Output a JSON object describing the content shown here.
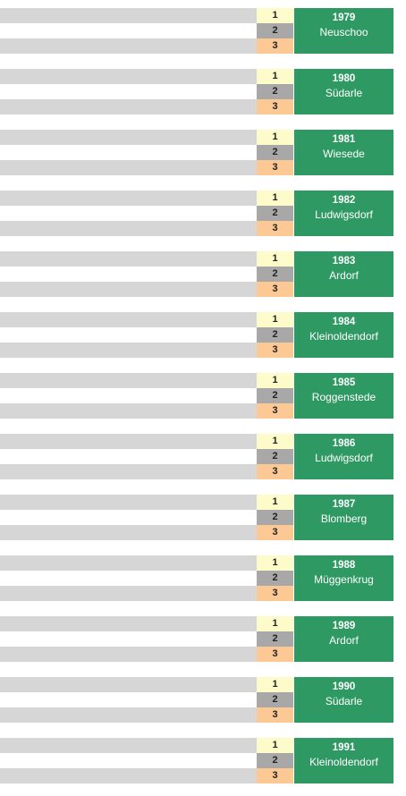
{
  "blocks": [
    {
      "ranks": [
        "1",
        "2",
        "3"
      ],
      "year": "1979",
      "place": "Neuschoo"
    },
    {
      "ranks": [
        "1",
        "2",
        "3"
      ],
      "year": "1980",
      "place": "Südarle"
    },
    {
      "ranks": [
        "1",
        "2",
        "3"
      ],
      "year": "1981",
      "place": "Wiesede"
    },
    {
      "ranks": [
        "1",
        "2",
        "3"
      ],
      "year": "1982",
      "place": "Ludwigsdorf"
    },
    {
      "ranks": [
        "1",
        "2",
        "3"
      ],
      "year": "1983",
      "place": "Ardorf"
    },
    {
      "ranks": [
        "1",
        "2",
        "3"
      ],
      "year": "1984",
      "place": "Kleinoldendorf"
    },
    {
      "ranks": [
        "1",
        "2",
        "3"
      ],
      "year": "1985",
      "place": "Roggenstede"
    },
    {
      "ranks": [
        "1",
        "2",
        "3"
      ],
      "year": "1986",
      "place": "Ludwigsdorf"
    },
    {
      "ranks": [
        "1",
        "2",
        "3"
      ],
      "year": "1987",
      "place": "Blomberg"
    },
    {
      "ranks": [
        "1",
        "2",
        "3"
      ],
      "year": "1988",
      "place": "Müggenkrug"
    },
    {
      "ranks": [
        "1",
        "2",
        "3"
      ],
      "year": "1989",
      "place": "Ardorf"
    },
    {
      "ranks": [
        "1",
        "2",
        "3"
      ],
      "year": "1990",
      "place": "Südarle"
    },
    {
      "ranks": [
        "1",
        "2",
        "3"
      ],
      "year": "1991",
      "place": "Kleinoldendorf"
    }
  ]
}
